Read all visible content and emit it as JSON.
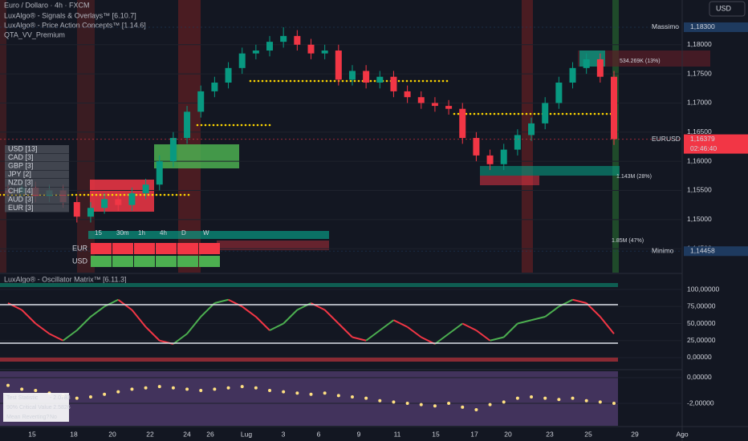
{
  "header": {
    "symbol": "Euro / Dollaro · 4h · FXCM",
    "indicators": [
      "LuxAlgo® - Signals & Overlays™ [6.10.7]",
      "LuxAlgo® - Price Action Concepts™ [1.14.6]",
      "QTA_VV_Premium"
    ],
    "currency": "USD"
  },
  "main_chart": {
    "type": "candlestick",
    "ylim": [
      1.1409,
      1.18767
    ],
    "yticks": [
      {
        "value": 1.18,
        "label": "1,18000"
      },
      {
        "value": 1.175,
        "label": "1,17500"
      },
      {
        "value": 1.17,
        "label": "1,17000"
      },
      {
        "value": 1.165,
        "label": "1,16500"
      },
      {
        "value": 1.16,
        "label": "1,16000"
      },
      {
        "value": 1.155,
        "label": "1,15500"
      },
      {
        "value": 1.15,
        "label": "1,15000"
      },
      {
        "value": 1.145,
        "label": "1,14500"
      }
    ],
    "up_color": "#089981",
    "down_color": "#f23645",
    "open": [
      1.155,
      1.1545,
      1.1555,
      1.154,
      1.155,
      1.153,
      1.1505,
      1.152,
      1.1535,
      1.1525,
      1.1545,
      1.156,
      1.16,
      1.164,
      1.1685,
      1.172,
      1.1735,
      1.176,
      1.1785,
      1.179,
      1.1805,
      1.1815,
      1.18,
      1.1785,
      1.179,
      1.174,
      1.1755,
      1.1735,
      1.1745,
      1.172,
      1.171,
      1.17,
      1.1695,
      1.169,
      1.164,
      1.161,
      1.1595,
      1.162,
      1.1645,
      1.1665,
      1.17,
      1.1735,
      1.176,
      1.1775,
      1.1745
    ],
    "high": [
      1.156,
      1.1565,
      1.1565,
      1.156,
      1.156,
      1.154,
      1.153,
      1.1545,
      1.1545,
      1.1555,
      1.157,
      1.161,
      1.165,
      1.1695,
      1.173,
      1.1745,
      1.177,
      1.1795,
      1.18,
      1.1815,
      1.183,
      1.1825,
      1.181,
      1.18,
      1.18,
      1.1765,
      1.1765,
      1.1755,
      1.1755,
      1.173,
      1.172,
      1.171,
      1.1705,
      1.17,
      1.165,
      1.162,
      1.163,
      1.1655,
      1.1675,
      1.171,
      1.1745,
      1.177,
      1.1785,
      1.1785,
      1.1755
    ],
    "low": [
      1.1535,
      1.1535,
      1.153,
      1.153,
      1.152,
      1.1495,
      1.1495,
      1.151,
      1.1515,
      1.1515,
      1.1535,
      1.155,
      1.159,
      1.163,
      1.1675,
      1.171,
      1.1725,
      1.175,
      1.1775,
      1.178,
      1.1795,
      1.179,
      1.1775,
      1.1775,
      1.173,
      1.173,
      1.1725,
      1.1725,
      1.171,
      1.17,
      1.169,
      1.1685,
      1.168,
      1.163,
      1.16,
      1.1585,
      1.1585,
      1.161,
      1.1635,
      1.1655,
      1.169,
      1.1725,
      1.175,
      1.1735,
      1.1628
    ],
    "close": [
      1.1545,
      1.1555,
      1.154,
      1.155,
      1.153,
      1.1505,
      1.152,
      1.1535,
      1.1525,
      1.1545,
      1.156,
      1.16,
      1.164,
      1.1685,
      1.172,
      1.1735,
      1.176,
      1.1785,
      1.179,
      1.1805,
      1.1815,
      1.18,
      1.1785,
      1.179,
      1.174,
      1.1755,
      1.1735,
      1.1745,
      1.172,
      1.171,
      1.17,
      1.1695,
      1.169,
      1.164,
      1.161,
      1.1595,
      1.162,
      1.1645,
      1.1665,
      1.17,
      1.1735,
      1.176,
      1.1775,
      1.1745,
      1.1638
    ],
    "max_label": {
      "name": "Massimo",
      "price": {
        "value": 1.183,
        "label": "1,18300"
      }
    },
    "last_label": {
      "name": "EURUSD",
      "price": {
        "value": 1.16379,
        "label": "1,16379"
      },
      "countdown": "02:46:40"
    },
    "min_label": {
      "name": "Minimo",
      "price": {
        "value": 1.14458,
        "label": "1,14458"
      }
    },
    "volume_labels": [
      "534.269K (13%)",
      "1.143M (28%)",
      "1.85M (47%)"
    ],
    "strength_table": [
      "USD [13]",
      "CAD [3]",
      "GBP [3]",
      "JPY [2]",
      "NZD [3]",
      "CHF [4]",
      "AUD [3]",
      "EUR [3]"
    ],
    "timeframe_table": {
      "columns": [
        "15",
        "30m",
        "1h",
        "4h",
        "D",
        "W"
      ],
      "rows": [
        "EUR",
        "USD"
      ]
    }
  },
  "oscillator": {
    "type": "line",
    "title": "LuxAlgo® - Oscillator Matrix™ [6.11.3]",
    "ylim": [
      -16.5,
      122.4
    ],
    "yticks": [
      {
        "value": 100,
        "label": "100,00000"
      },
      {
        "value": 75,
        "label": "75,00000"
      },
      {
        "value": 50,
        "label": "50,00000"
      },
      {
        "value": 25,
        "label": "25,00000"
      },
      {
        "value": 0,
        "label": "0,00000"
      }
    ],
    "values": [
      80,
      70,
      50,
      35,
      25,
      40,
      60,
      75,
      85,
      70,
      45,
      25,
      20,
      35,
      60,
      80,
      85,
      75,
      60,
      40,
      50,
      70,
      80,
      70,
      50,
      30,
      25,
      40,
      55,
      45,
      30,
      20,
      35,
      50,
      40,
      25,
      30,
      50,
      55,
      60,
      75,
      85,
      80,
      60,
      35
    ],
    "up_color": "#4caf50",
    "down_color": "#f23645"
  },
  "stat_panel": {
    "type": "scatter",
    "ylim": [
      -3.81,
      0.56
    ],
    "yticks": [
      {
        "value": 0,
        "label": "0,00000"
      },
      {
        "value": -2,
        "label": "-2,00000"
      }
    ],
    "values": [
      -0.6,
      -0.9,
      -1.0,
      -1.2,
      -1.4,
      -1.6,
      -1.5,
      -1.3,
      -1.1,
      -0.9,
      -0.8,
      -0.7,
      -0.8,
      -0.9,
      -1.0,
      -0.9,
      -0.8,
      -0.7,
      -0.8,
      -1.0,
      -1.1,
      -1.2,
      -1.3,
      -1.2,
      -1.4,
      -1.5,
      -1.6,
      -1.8,
      -1.9,
      -2.0,
      -2.1,
      -2.2,
      -2.0,
      -2.3,
      -2.5,
      -2.1,
      -1.9,
      -1.6,
      -1.5,
      -1.6,
      -1.7,
      -1.6,
      -1.8,
      -1.9,
      -2.0
    ],
    "color": "#ffe082",
    "table": [
      [
        "Test Statistic",
        "- 2.0783"
      ],
      [
        "90% Critical Value",
        "- 2.5826"
      ],
      [
        "Mean Reverting?",
        "No"
      ]
    ]
  },
  "time_axis": [
    "15",
    "18",
    "20",
    "22",
    "24",
    "26",
    "Lug",
    "3",
    "6",
    "9",
    "11",
    "15",
    "17",
    "20",
    "23",
    "25",
    "29",
    "Ago"
  ]
}
